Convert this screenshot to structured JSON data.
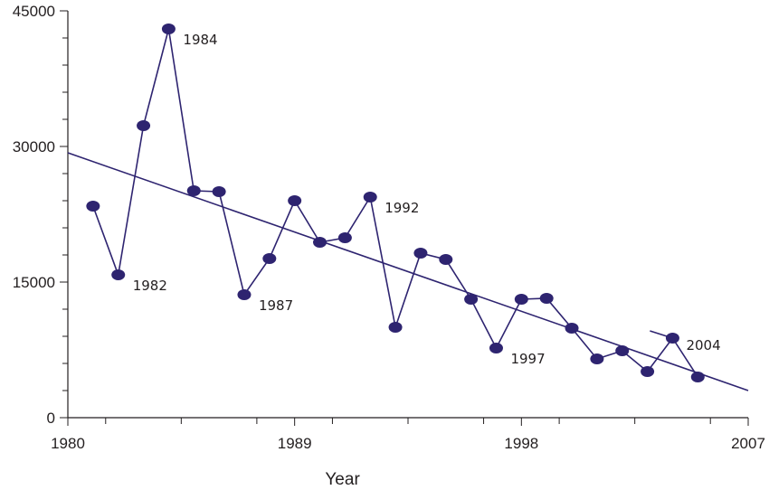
{
  "chart_data": {
    "type": "scatter",
    "title": "",
    "xlabel": "Year",
    "ylabel": "",
    "xlim": [
      1980,
      2007
    ],
    "ylim": [
      0,
      45000
    ],
    "x_ticks": [
      1980,
      1989,
      1998,
      2007
    ],
    "x_tick_labels": [
      "1980",
      "1989",
      "1998",
      "2007"
    ],
    "y_ticks": [
      0,
      15000,
      30000,
      45000
    ],
    "y_tick_labels": [
      "0",
      "15000",
      "30000",
      "45000"
    ],
    "grid": false,
    "legend": "none",
    "colors": {
      "series": "#2e2470",
      "axis": "#231f20"
    },
    "series": [
      {
        "points": [
          {
            "x": 1981,
            "y": 23400
          },
          {
            "x": 1982,
            "y": 15800
          },
          {
            "x": 1983,
            "y": 32300
          },
          {
            "x": 1984,
            "y": 43000
          },
          {
            "x": 1985,
            "y": 25100
          },
          {
            "x": 1986,
            "y": 25000
          },
          {
            "x": 1987,
            "y": 13600
          },
          {
            "x": 1988,
            "y": 17600
          },
          {
            "x": 1989,
            "y": 24000
          },
          {
            "x": 1990,
            "y": 19400
          },
          {
            "x": 1991,
            "y": 19900
          },
          {
            "x": 1992,
            "y": 24400
          },
          {
            "x": 1993,
            "y": 10000
          },
          {
            "x": 1994,
            "y": 18200
          },
          {
            "x": 1995,
            "y": 17500
          },
          {
            "x": 1996,
            "y": 13100
          },
          {
            "x": 1997,
            "y": 7700
          },
          {
            "x": 1998,
            "y": 13100
          },
          {
            "x": 1999,
            "y": 13200
          },
          {
            "x": 2000,
            "y": 9900
          },
          {
            "x": 2001,
            "y": 6500
          },
          {
            "x": 2002,
            "y": 7400
          },
          {
            "x": 2003,
            "y": 5100
          },
          {
            "x": 2004,
            "y": 8800
          },
          {
            "x": 2005,
            "y": 4500
          }
        ]
      }
    ],
    "trend_line": {
      "start": {
        "x": 1980,
        "y": 29300
      },
      "end": {
        "x": 2007,
        "y": 3000
      }
    },
    "extra_segment": {
      "start": {
        "x": 2003.1,
        "y": 9600
      },
      "end": {
        "x": 2004,
        "y": 8800
      }
    },
    "annotations": [
      {
        "text": "1982",
        "x": 1982,
        "y": 15800,
        "anchor": "below-right"
      },
      {
        "text": "1984",
        "x": 1984,
        "y": 43000,
        "anchor": "below-right"
      },
      {
        "text": "1987",
        "x": 1987,
        "y": 13600,
        "anchor": "below-right"
      },
      {
        "text": "1992",
        "x": 1992,
        "y": 24400,
        "anchor": "below-right"
      },
      {
        "text": "1997",
        "x": 1997,
        "y": 7700,
        "anchor": "below-right"
      },
      {
        "text": "2004",
        "x": 2004,
        "y": 8800,
        "anchor": "right"
      }
    ]
  }
}
